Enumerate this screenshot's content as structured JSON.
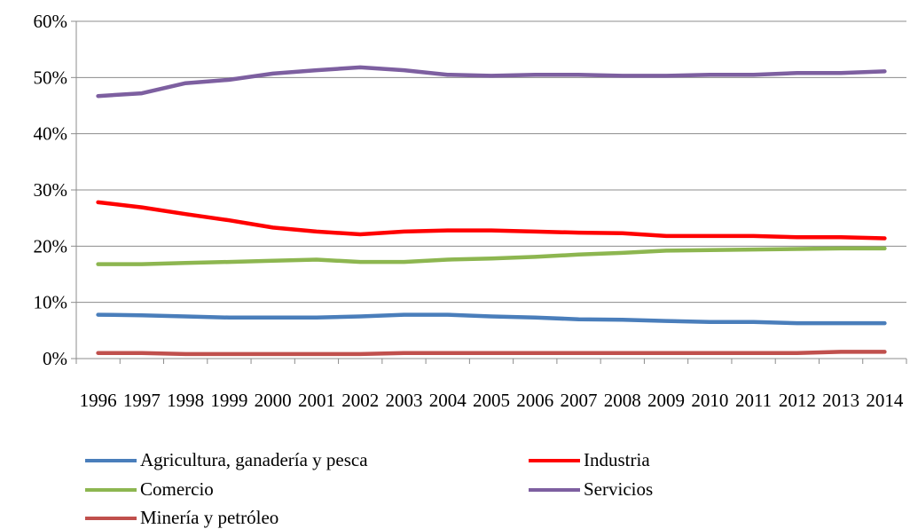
{
  "chart_data": {
    "type": "line",
    "title": "",
    "xlabel": "",
    "ylabel": "",
    "categories": [
      "1996",
      "1997",
      "1998",
      "1999",
      "2000",
      "2001",
      "2002",
      "2003",
      "2004",
      "2005",
      "2006",
      "2007",
      "2008",
      "2009",
      "2010",
      "2011",
      "2012",
      "2013",
      "2014"
    ],
    "ylim": [
      0,
      60
    ],
    "yticks": [
      "0%",
      "10%",
      "20%",
      "30%",
      "40%",
      "50%",
      "60%"
    ],
    "grid": true,
    "legend_position": "bottom",
    "series": [
      {
        "name": "Agricultura, ganadería y pesca",
        "color": "#4a7ebb",
        "values": [
          7.8,
          7.7,
          7.5,
          7.3,
          7.3,
          7.3,
          7.5,
          7.8,
          7.8,
          7.5,
          7.3,
          7.0,
          6.9,
          6.7,
          6.5,
          6.5,
          6.3,
          6.3,
          6.3
        ]
      },
      {
        "name": "Industria",
        "color": "#ff0000",
        "values": [
          27.8,
          26.9,
          25.7,
          24.6,
          23.3,
          22.6,
          22.1,
          22.6,
          22.8,
          22.8,
          22.6,
          22.4,
          22.3,
          21.8,
          21.8,
          21.8,
          21.6,
          21.6,
          21.4
        ]
      },
      {
        "name": "Comercio",
        "color": "#8db650",
        "values": [
          16.8,
          16.8,
          17.0,
          17.2,
          17.4,
          17.6,
          17.2,
          17.2,
          17.6,
          17.8,
          18.1,
          18.5,
          18.8,
          19.2,
          19.3,
          19.4,
          19.5,
          19.6,
          19.6
        ]
      },
      {
        "name": "Servicios",
        "color": "#7d5fa0",
        "values": [
          46.7,
          47.2,
          49.0,
          49.6,
          50.7,
          51.3,
          51.8,
          51.3,
          50.5,
          50.3,
          50.5,
          50.5,
          50.3,
          50.3,
          50.5,
          50.5,
          50.8,
          50.8,
          51.1
        ]
      },
      {
        "name": "Minería y petróleo",
        "color": "#c0504d",
        "values": [
          1.0,
          1.0,
          0.8,
          0.8,
          0.8,
          0.8,
          0.8,
          1.0,
          1.0,
          1.0,
          1.0,
          1.0,
          1.0,
          1.0,
          1.0,
          1.0,
          1.0,
          1.2,
          1.2
        ]
      }
    ]
  }
}
